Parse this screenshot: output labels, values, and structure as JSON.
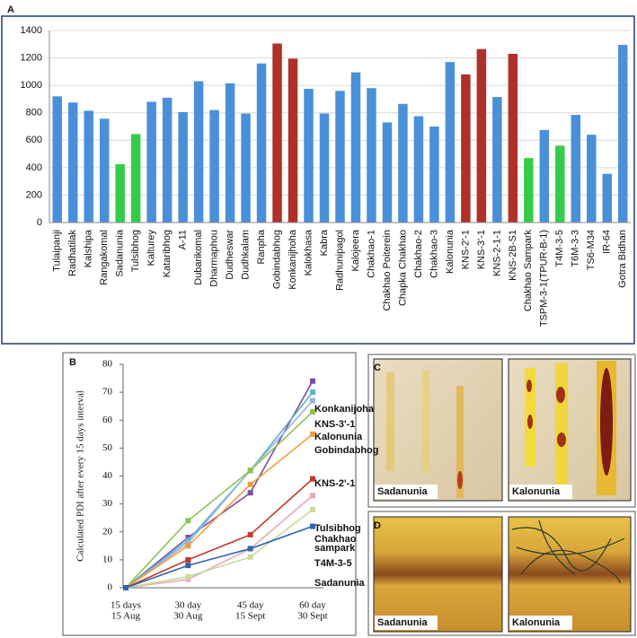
{
  "chart_data": [
    {
      "type": "bar",
      "panel": "A",
      "categories": [
        "Tulaipanji",
        "Radhatilak",
        "Kalshipa",
        "Rangakomal",
        "Sadanunia",
        "Tulsibhog",
        "Kalturey",
        "Kataribhog",
        "A-11",
        "Dubarikomal",
        "Dharmaphou",
        "Dudheswar",
        "Dudhkalam",
        "Ranpha",
        "Gobindabhog",
        "Konkanijhoha",
        "Kalokhasa",
        "Kabra",
        "Radhunipagol",
        "Kalojeera",
        "Chakhao-1",
        "Chakhao Poiterein",
        "Chapka Chakhao",
        "Chakhao-2",
        "Chakhao-3",
        "Kalonunia",
        "KNS-2'-1",
        "KNS-3'-1",
        "KNS-2-1-1",
        "KNS-2B-S1",
        "Chakhao Sampark",
        "TSPM-3-1(TPUR-B-1)",
        "T4M-3-5",
        "T6M-3-3",
        "TS6-M34",
        "IR-64",
        "Gotra Bidhan"
      ],
      "values": [
        920,
        875,
        815,
        757,
        425,
        645,
        880,
        910,
        805,
        1030,
        820,
        1015,
        795,
        1160,
        1305,
        1195,
        975,
        795,
        960,
        1095,
        980,
        730,
        865,
        775,
        700,
        1170,
        1080,
        1265,
        915,
        1230,
        470,
        675,
        560,
        785,
        640,
        355,
        1295
      ],
      "colors": [
        "#4a90d9",
        "#4a90d9",
        "#4a90d9",
        "#4a90d9",
        "#33cc4a",
        "#33cc4a",
        "#4a90d9",
        "#4a90d9",
        "#4a90d9",
        "#4a90d9",
        "#4a90d9",
        "#4a90d9",
        "#4a90d9",
        "#4a90d9",
        "#b0302a",
        "#b0302a",
        "#4a90d9",
        "#4a90d9",
        "#4a90d9",
        "#4a90d9",
        "#4a90d9",
        "#4a90d9",
        "#4a90d9",
        "#4a90d9",
        "#4a90d9",
        "#4a90d9",
        "#b0302a",
        "#b0302a",
        "#4a90d9",
        "#b0302a",
        "#33cc4a",
        "#4a90d9",
        "#33cc4a",
        "#4a90d9",
        "#4a90d9",
        "#4a90d9",
        "#4a90d9"
      ],
      "ylim": [
        0,
        1400
      ],
      "yticks": [
        0,
        200,
        400,
        600,
        800,
        1000,
        1200,
        1400
      ],
      "grid": true
    },
    {
      "type": "line",
      "panel": "B",
      "y_label": "Calculated PDI after every 15 days interval",
      "categories": [
        [
          "15 days",
          "15 Aug"
        ],
        [
          "30 day",
          "30 Aug"
        ],
        [
          "45 day",
          "15 Sept"
        ],
        [
          "60 day",
          "30 Sept"
        ]
      ],
      "ylim": [
        0,
        80
      ],
      "yticks": [
        0,
        10,
        20,
        30,
        40,
        50,
        60,
        70,
        80
      ],
      "series": [
        {
          "name": "Konkanijoha",
          "color": "#7b4fa6",
          "values": [
            0,
            18,
            34,
            74
          ]
        },
        {
          "name": "KNS-3'-1",
          "color": "#5ab4c8",
          "values": [
            0,
            17,
            42,
            70
          ]
        },
        {
          "name": "Kalonunia",
          "color": "#9bb5dc",
          "values": [
            0,
            16,
            42,
            67
          ]
        },
        {
          "name": "Gobindabhog",
          "color": "#8dc44e",
          "values": [
            0,
            24,
            42,
            63
          ]
        },
        {
          "name": "KNS-2'-1",
          "color": "#f39a3c",
          "values": [
            0,
            15,
            37,
            55
          ]
        },
        {
          "name": "Tulsibhog",
          "color": "#c0392b",
          "values": [
            0,
            10,
            19,
            39
          ]
        },
        {
          "name": [
            "Chakhao",
            "sampark"
          ],
          "color": "#e8a9b4",
          "values": [
            0,
            3,
            14,
            33
          ]
        },
        {
          "name": "T4M-3-5",
          "color": "#c5dc9a",
          "values": [
            0,
            4,
            11,
            28
          ]
        },
        {
          "name": "Sadanunia",
          "color": "#2e64b4",
          "values": [
            0,
            8,
            14,
            22
          ]
        }
      ]
    }
  ],
  "images": [
    {
      "panel": "C",
      "captions": [
        "Sadanunia",
        "Kalonunia"
      ]
    },
    {
      "panel": "D",
      "captions": [
        "Sadanunia",
        "Kalonunia"
      ]
    }
  ]
}
